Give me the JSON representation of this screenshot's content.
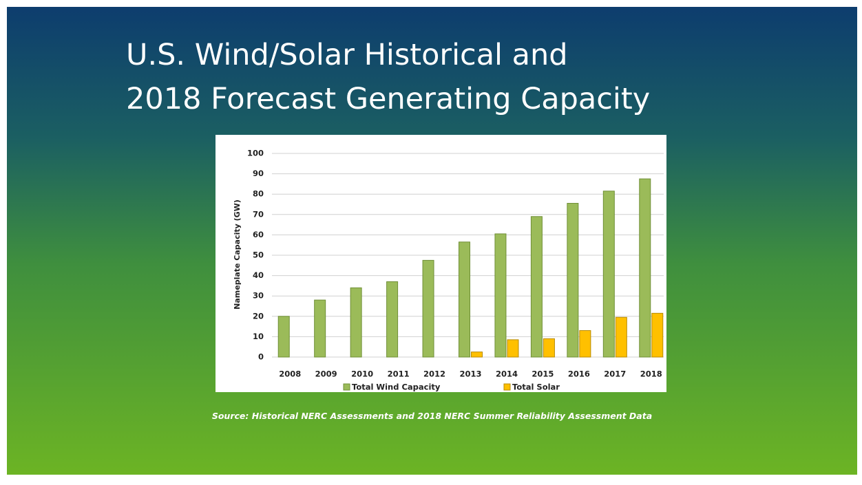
{
  "slide": {
    "title": [
      "U.S. Wind/Solar Historical and",
      "2018 Forecast Generating Capacity"
    ],
    "source": "Source:  Historical NERC Assessments and 2018 NERC Summer Reliability Assessment Data"
  },
  "chart_data": {
    "type": "bar",
    "y_label": "Nameplate Capacity (GW)",
    "categories": [
      "2008",
      "2009",
      "2010",
      "2011",
      "2012",
      "2013",
      "2014",
      "2015",
      "2016",
      "2017",
      "2018"
    ],
    "series": [
      {
        "name": "Total Wind Capacity",
        "color": "#9bbb59",
        "values": [
          20,
          28,
          34,
          37,
          47.5,
          56.5,
          60.5,
          69,
          75.5,
          81.5,
          87.5
        ]
      },
      {
        "name": "Total Solar",
        "color": "#ffc000",
        "values": [
          0,
          0,
          0,
          0,
          0,
          2.5,
          8.5,
          9,
          13,
          19.5,
          21.5
        ]
      }
    ],
    "ylim": [
      0,
      100
    ],
    "yticks": [
      0,
      10,
      20,
      30,
      40,
      50,
      60,
      70,
      80,
      90,
      100
    ],
    "grid": true,
    "legend": "bottom"
  }
}
